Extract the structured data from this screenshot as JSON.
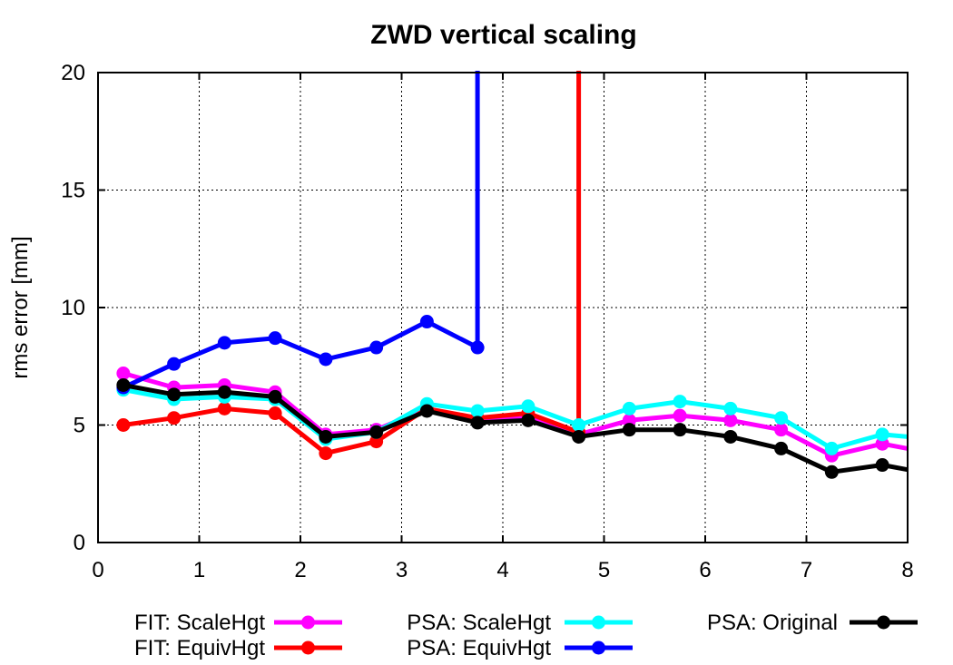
{
  "chart_data": {
    "type": "line",
    "title": "ZWD vertical scaling",
    "xlabel": "",
    "ylabel": "rms error [mm]",
    "xlim": [
      0,
      8
    ],
    "ylim": [
      0,
      20
    ],
    "xticks": [
      "0",
      "1",
      "2",
      "3",
      "4",
      "5",
      "6",
      "7",
      "8"
    ],
    "yticks": [
      "0",
      "5",
      "10",
      "15",
      "20"
    ],
    "grid": true,
    "legend_position": "bottom",
    "series": [
      {
        "name": "FIT: ScaleHgt",
        "color": "#ff00ff",
        "x": [
          0.25,
          0.75,
          1.25,
          1.75,
          2.25,
          2.75,
          3.25,
          3.75,
          4.25,
          4.75,
          5.25,
          5.75,
          6.25,
          6.75,
          7.25,
          7.75,
          8.0
        ],
        "y": [
          7.2,
          6.6,
          6.7,
          6.4,
          4.6,
          4.8,
          5.7,
          5.2,
          5.3,
          4.6,
          5.2,
          5.4,
          5.2,
          4.8,
          3.7,
          4.2,
          4.0
        ]
      },
      {
        "name": "FIT: EquivHgt",
        "color": "#ff0000",
        "x": [
          0.25,
          0.75,
          1.25,
          1.75,
          2.25,
          2.75,
          3.25,
          3.75,
          4.25,
          4.75,
          4.75
        ],
        "y": [
          5.0,
          5.3,
          5.7,
          5.5,
          3.8,
          4.3,
          5.7,
          5.3,
          5.5,
          4.7,
          20.5
        ]
      },
      {
        "name": "PSA: ScaleHgt",
        "color": "#00ffff",
        "x": [
          0.25,
          0.75,
          1.25,
          1.75,
          2.25,
          2.75,
          3.25,
          3.75,
          4.25,
          4.75,
          5.25,
          5.75,
          6.25,
          6.75,
          7.25,
          7.75,
          8.0
        ],
        "y": [
          6.5,
          6.1,
          6.2,
          6.1,
          4.4,
          4.7,
          5.9,
          5.6,
          5.8,
          5.0,
          5.7,
          6.0,
          5.7,
          5.3,
          4.0,
          4.6,
          4.5
        ]
      },
      {
        "name": "PSA: EquivHgt",
        "color": "#0000ff",
        "x": [
          0.25,
          0.75,
          1.25,
          1.75,
          2.25,
          2.75,
          3.25,
          3.75,
          3.75
        ],
        "y": [
          6.6,
          7.6,
          8.5,
          8.7,
          7.8,
          8.3,
          9.4,
          8.3,
          20.5
        ]
      },
      {
        "name": "PSA: Original",
        "color": "#000000",
        "x": [
          0.25,
          0.75,
          1.25,
          1.75,
          2.25,
          2.75,
          3.25,
          3.75,
          4.25,
          4.75,
          5.25,
          5.75,
          6.25,
          6.75,
          7.25,
          7.75,
          8.0
        ],
        "y": [
          6.7,
          6.3,
          6.4,
          6.2,
          4.5,
          4.7,
          5.6,
          5.1,
          5.2,
          4.5,
          4.8,
          4.8,
          4.5,
          4.0,
          3.0,
          3.3,
          3.1
        ]
      }
    ]
  }
}
